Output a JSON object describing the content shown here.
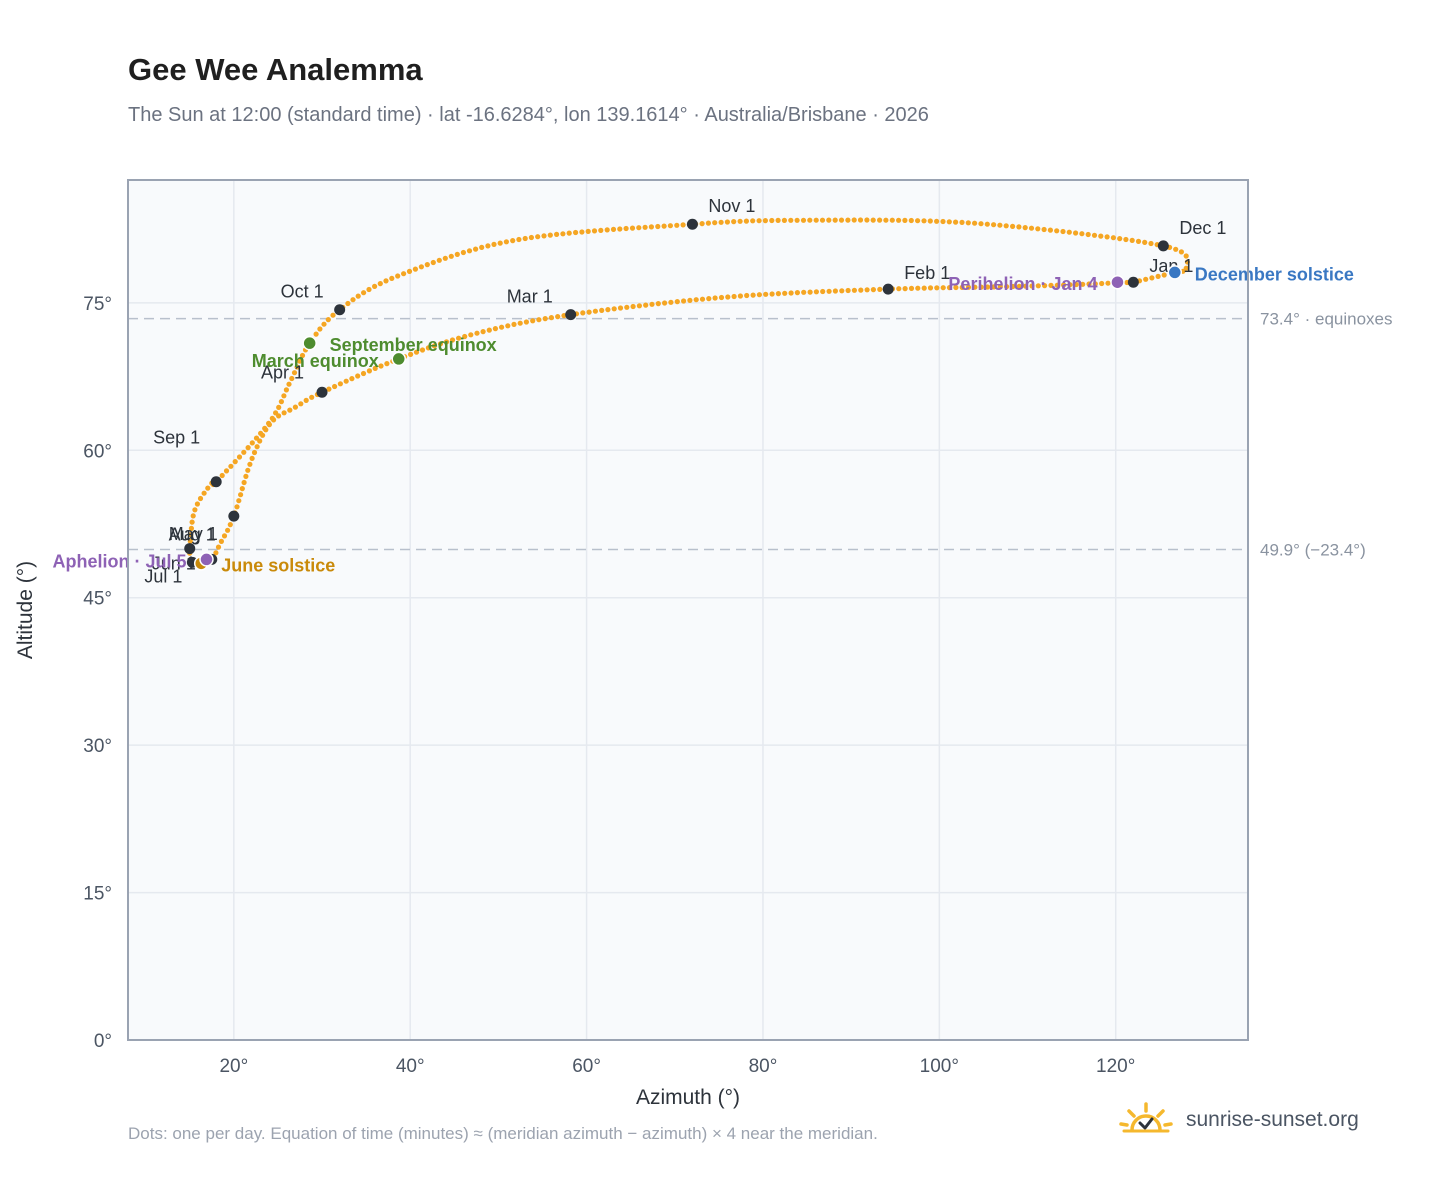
{
  "header": {
    "title": "Gee Wee Analemma",
    "subtitle": "The Sun at 12:00 (standard time) · lat -16.6284°, lon 139.1614° · Australia/Brisbane · 2026"
  },
  "footer": {
    "note": "Dots: one per day. Equation of time (minutes) ≈ (meridian azimuth − azimuth) × 4 near the meridian.",
    "brand": "sunrise-sunset.org",
    "brand_icon": "sun-horizon-icon"
  },
  "colors": {
    "curve": "#f5a623",
    "month_marker": "#2d333b",
    "equinox": "#4e8c2f",
    "june_solstice": "#c98a0a",
    "december_solstice": "#3a78c3",
    "apsis": "#8e62b5",
    "reference_line": "#b8c0cc",
    "plot_bg": "#f8fafc",
    "grid": "#e5e9ef",
    "frame": "#9aa3b2"
  },
  "chart_data": {
    "type": "scatter",
    "title": "Gee Wee Analemma",
    "xlabel": "Azimuth (°)",
    "ylabel": "Altitude (°)",
    "xlim": [
      8,
      135
    ],
    "ylim": [
      0,
      87.5
    ],
    "x_ticks": [
      20,
      40,
      60,
      80,
      100,
      120
    ],
    "y_ticks": [
      0,
      15,
      30,
      45,
      60,
      75
    ],
    "x_tick_labels": [
      "20°",
      "40°",
      "60°",
      "80°",
      "100°",
      "120°"
    ],
    "y_tick_labels": [
      "0°",
      "15°",
      "30°",
      "45°",
      "60°",
      "75°"
    ],
    "grid": true,
    "reference_lines": [
      {
        "y": 73.4,
        "label": "73.4° · equinoxes"
      },
      {
        "y": 49.9,
        "label": "49.9° (−23.4°)"
      }
    ],
    "analemma_path": [
      {
        "date": "Jan 1",
        "az": 122.0,
        "alt": 77.1
      },
      {
        "date": "Jan 15",
        "az": 110.0,
        "alt": 76.7
      },
      {
        "date": "Feb 1",
        "az": 94.2,
        "alt": 76.4
      },
      {
        "date": "Feb 15",
        "az": 76.0,
        "alt": 75.6
      },
      {
        "date": "Mar 1",
        "az": 58.2,
        "alt": 73.8
      },
      {
        "date": "Mar 10",
        "az": 47.5,
        "alt": 71.9
      },
      {
        "date": "Mar 20",
        "az": 38.7,
        "alt": 69.3
      },
      {
        "date": "Apr 1",
        "az": 30.0,
        "alt": 65.9
      },
      {
        "date": "Apr 10",
        "az": 27.0,
        "alt": 64.4
      },
      {
        "date": "Apr 15",
        "az": 24.2,
        "alt": 62.8
      },
      {
        "date": "Apr 25",
        "az": 22.0,
        "alt": 59.0
      },
      {
        "date": "May 1",
        "az": 20.0,
        "alt": 53.3
      },
      {
        "date": "May 15",
        "az": 18.4,
        "alt": 50.4
      },
      {
        "date": "Jun 1",
        "az": 17.5,
        "alt": 48.9
      },
      {
        "date": "Jun 21",
        "az": 16.3,
        "alt": 48.5
      },
      {
        "date": "Jul 1",
        "az": 15.3,
        "alt": 48.6
      },
      {
        "date": "Jul 15",
        "az": 15.0,
        "alt": 49.5
      },
      {
        "date": "Aug 1",
        "az": 15.0,
        "alt": 50.0
      },
      {
        "date": "Aug 15",
        "az": 15.6,
        "alt": 54.0
      },
      {
        "date": "Aug 20",
        "az": 17.8,
        "alt": 57.0
      },
      {
        "date": "Sep 1",
        "az": 18.0,
        "alt": 56.8
      },
      {
        "date": "Sep 10",
        "az": 24.0,
        "alt": 62.8
      },
      {
        "date": "Sep 15",
        "az": 26.4,
        "alt": 67.0
      },
      {
        "date": "Sep 22",
        "az": 28.6,
        "alt": 70.9
      },
      {
        "date": "Oct 1",
        "az": 32.0,
        "alt": 74.3
      },
      {
        "date": "Oct 10",
        "az": 38.5,
        "alt": 77.7
      },
      {
        "date": "Oct 20",
        "az": 52.0,
        "alt": 81.4
      },
      {
        "date": "Nov 1",
        "az": 72.0,
        "alt": 83.0
      },
      {
        "date": "Nov 10",
        "az": 84.0,
        "alt": 83.4
      },
      {
        "date": "Nov 20",
        "az": 104.0,
        "alt": 83.1
      },
      {
        "date": "Dec 1",
        "az": 125.4,
        "alt": 80.8
      },
      {
        "date": "Dec 10",
        "az": 128.0,
        "alt": 78.5
      },
      {
        "date": "Dec 21",
        "az": 126.7,
        "alt": 78.1
      },
      {
        "date": "Dec 31",
        "az": 122.0,
        "alt": 77.1
      }
    ],
    "month_markers": [
      {
        "label": "Jan 1",
        "az": 122.0,
        "alt": 77.1
      },
      {
        "label": "Feb 1",
        "az": 94.2,
        "alt": 76.4
      },
      {
        "label": "Mar 1",
        "az": 58.2,
        "alt": 73.8
      },
      {
        "label": "Apr 1",
        "az": 30.0,
        "alt": 65.9
      },
      {
        "label": "May 1",
        "az": 20.0,
        "alt": 53.3
      },
      {
        "label": "Jun 1",
        "az": 17.5,
        "alt": 48.9
      },
      {
        "label": "Jul 1",
        "az": 15.3,
        "alt": 48.6
      },
      {
        "label": "Aug 1",
        "az": 15.0,
        "alt": 50.0
      },
      {
        "label": "Sep 1",
        "az": 18.0,
        "alt": 56.8
      },
      {
        "label": "Oct 1",
        "az": 32.0,
        "alt": 74.3
      },
      {
        "label": "Nov 1",
        "az": 72.0,
        "alt": 83.0
      },
      {
        "label": "Dec 1",
        "az": 125.4,
        "alt": 80.8
      }
    ],
    "extra_label_points": [
      {
        "label": "Apr 1",
        "az": 24.2,
        "alt": 62.8
      },
      {
        "label": "Jun 1",
        "az": 15.3,
        "alt": 48.6
      }
    ],
    "events": [
      {
        "label": "March equinox",
        "az": 38.7,
        "alt": 69.3,
        "kind": "equinox"
      },
      {
        "label": "September equinox",
        "az": 28.6,
        "alt": 70.9,
        "kind": "equinox"
      },
      {
        "label": "June solstice",
        "az": 16.3,
        "alt": 48.5,
        "kind": "june_solstice"
      },
      {
        "label": "December solstice",
        "az": 126.7,
        "alt": 78.1,
        "kind": "december_solstice"
      },
      {
        "label": "Perihelion · Jan 4",
        "az": 120.2,
        "alt": 77.1,
        "kind": "apsis"
      },
      {
        "label": "Aphelion · Jul 5",
        "az": 16.9,
        "alt": 48.9,
        "kind": "apsis"
      }
    ]
  }
}
